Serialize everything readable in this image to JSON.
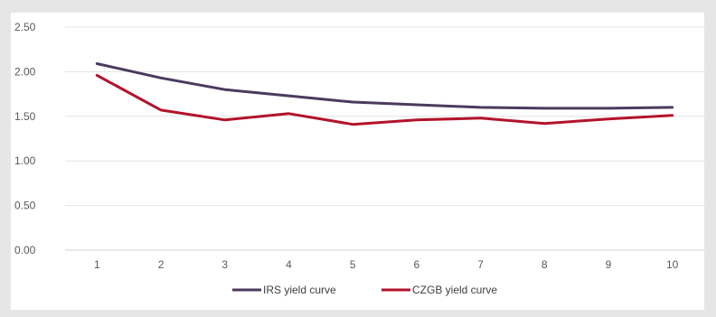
{
  "chart_data": {
    "type": "line",
    "title": "",
    "xlabel": "",
    "ylabel": "",
    "categories": [
      "1",
      "2",
      "3",
      "4",
      "5",
      "6",
      "7",
      "8",
      "9",
      "10"
    ],
    "y_ticks": [
      "0.00",
      "0.50",
      "1.00",
      "1.50",
      "2.00",
      "2.50"
    ],
    "ylim": [
      0,
      2.5
    ],
    "grid": true,
    "legend_position": "bottom",
    "series": [
      {
        "name": "IRS yield curve",
        "color": "#4b3a5e",
        "values": [
          2.09,
          1.93,
          1.8,
          1.73,
          1.66,
          1.63,
          1.6,
          1.59,
          1.59,
          1.6
        ]
      },
      {
        "name": "CZGB yield curve",
        "color": "#b3132a",
        "values": [
          1.96,
          1.57,
          1.46,
          1.53,
          1.41,
          1.46,
          1.48,
          1.42,
          1.47,
          1.51
        ]
      }
    ]
  }
}
